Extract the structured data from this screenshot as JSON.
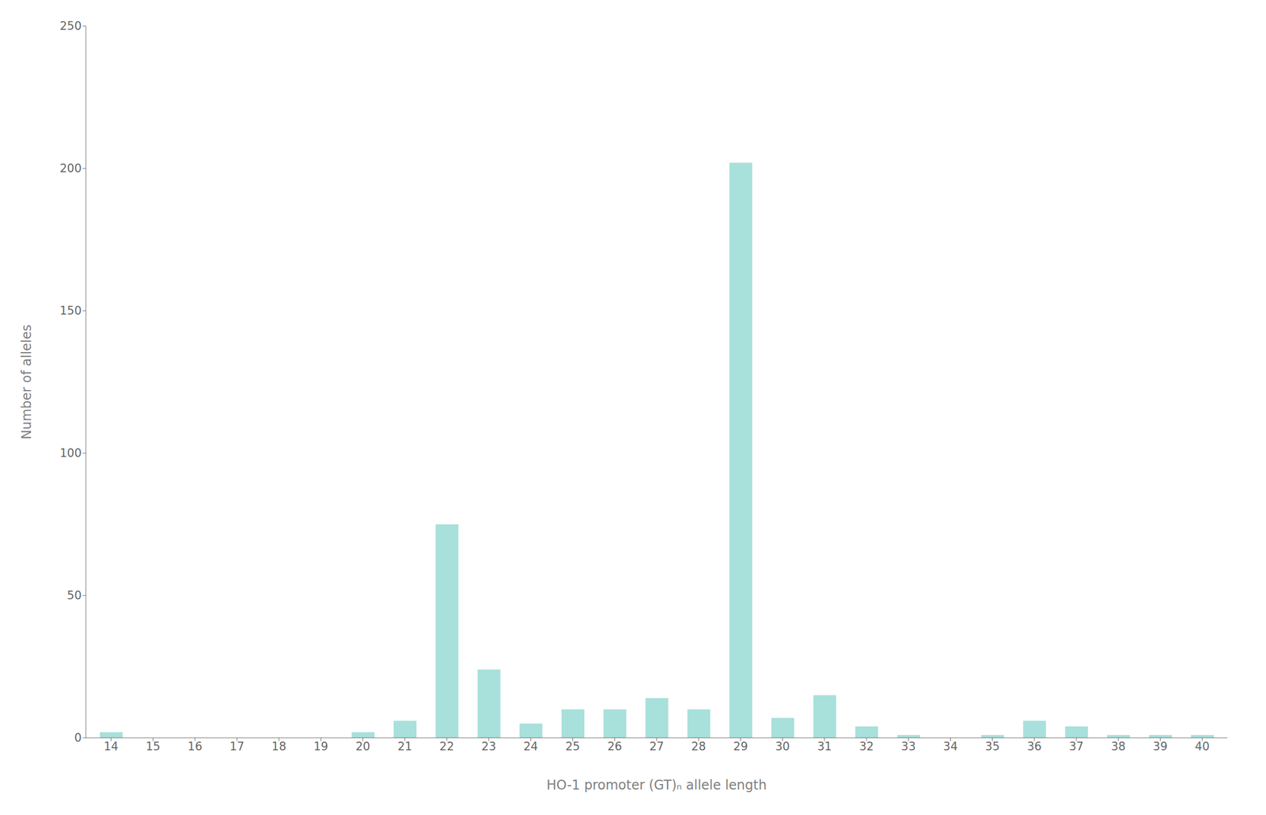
{
  "chart_data": {
    "type": "bar",
    "x": [
      14,
      15,
      16,
      17,
      18,
      19,
      20,
      21,
      22,
      23,
      24,
      25,
      26,
      27,
      28,
      29,
      30,
      31,
      32,
      33,
      34,
      35,
      36,
      37,
      38,
      39,
      40
    ],
    "values": [
      2,
      0,
      0,
      0,
      0,
      0,
      2,
      6,
      75,
      24,
      5,
      10,
      10,
      14,
      10,
      202,
      7,
      15,
      4,
      1,
      0,
      1,
      6,
      4,
      1,
      1,
      1
    ],
    "color": "#A8E0DC",
    "xlabel": "HO-1 promoter (GT)ₙ allele length",
    "ylabel": "Number of alleles",
    "xlim": [
      13.4,
      40.6
    ],
    "xticks": [
      14,
      15,
      16,
      17,
      18,
      19,
      20,
      21,
      22,
      23,
      24,
      25,
      26,
      27,
      28,
      29,
      30,
      31,
      32,
      33,
      34,
      35,
      36,
      37,
      38,
      39,
      40
    ],
    "ylim": [
      0,
      250
    ],
    "yticks": [
      0,
      50,
      100,
      150,
      200,
      250
    ],
    "grid": false
  }
}
